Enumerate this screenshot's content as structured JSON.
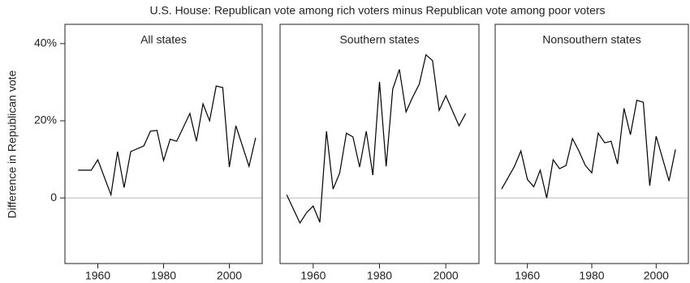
{
  "chart_data": [
    {
      "type": "line",
      "title": "U.S. House: Republican vote among rich voters minus Republican vote among poor voters",
      "ylabel": "Difference in Republican vote",
      "subtitle": "All states",
      "color": "#000000",
      "hline": 0,
      "x": [
        1954,
        1958,
        1960,
        1964,
        1966,
        1968,
        1970,
        1974,
        1976,
        1978,
        1980,
        1982,
        1984,
        1988,
        1990,
        1992,
        1994,
        1996,
        1998,
        2000,
        2002,
        2006,
        2008
      ],
      "values": [
        7.2,
        7.2,
        9.9,
        0.8,
        12,
        2.7,
        12,
        13.5,
        17.3,
        17.5,
        9.7,
        15.2,
        14.7,
        21.9,
        14.7,
        24.4,
        20,
        29,
        28.6,
        8,
        18.7,
        8.2,
        15.6
      ],
      "xlim": [
        1950,
        2010
      ],
      "ylim": [
        -17,
        45
      ],
      "xticks": [
        1960,
        1980,
        2000
      ],
      "yticks": [
        0,
        {
          "value": 20,
          "label": "20%"
        },
        {
          "value": 40,
          "label": "40%"
        }
      ]
    },
    {
      "type": "line",
      "subtitle": "Southern states",
      "color": "#000000",
      "hline": 0,
      "x": [
        1952,
        1956,
        1958,
        1960,
        1962,
        1964,
        1966,
        1968,
        1970,
        1972,
        1974,
        1976,
        1978,
        1980,
        1982,
        1984,
        1986,
        1988,
        1990,
        1992,
        1994,
        1996,
        1998,
        2000,
        2004,
        2006
      ],
      "values": [
        0.8,
        -6.5,
        -3.8,
        -2.1,
        -6.3,
        17.3,
        2.3,
        6.5,
        16.8,
        15.8,
        8,
        17.3,
        5.9,
        30.1,
        8.2,
        28.2,
        33.3,
        22.3,
        26.1,
        29.5,
        37.1,
        35.6,
        22.7,
        26.5,
        18.7,
        21.9
      ],
      "xlim": [
        1950,
        2010
      ],
      "ylim": [
        -17,
        45
      ],
      "xticks": [
        1960,
        1980,
        2000
      ]
    },
    {
      "type": "line",
      "subtitle": "Nonsouthern states",
      "color": "#000000",
      "hline": 0,
      "x": [
        1952,
        1956,
        1958,
        1960,
        1962,
        1964,
        1966,
        1968,
        1970,
        1972,
        1974,
        1976,
        1978,
        1980,
        1982,
        1984,
        1986,
        1988,
        1990,
        1992,
        1994,
        1996,
        1998,
        2000,
        2004,
        2006
      ],
      "values": [
        2.3,
        8.2,
        12.2,
        4.8,
        2.9,
        7.2,
        0,
        9.9,
        7.6,
        8.4,
        15.4,
        12.2,
        8.4,
        6.5,
        16.8,
        14.3,
        14.7,
        8.8,
        23.2,
        16.4,
        25.3,
        24.8,
        3.2,
        16,
        4.4,
        12.6
      ],
      "xlim": [
        1950,
        2010
      ],
      "ylim": [
        -17,
        45
      ],
      "xticks": [
        1960,
        1980,
        2000
      ]
    }
  ]
}
